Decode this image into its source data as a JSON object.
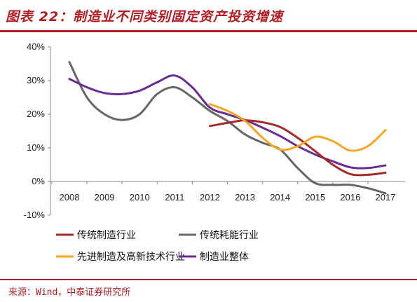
{
  "title": "图表 22：制造业不同类别固定资产投资增速",
  "source": "来源：Wind，中泰证券研究所",
  "chart_data": {
    "type": "line",
    "title": "图表 22：制造业不同类别固定资产投资增速",
    "xlabel": "",
    "ylabel": "",
    "x": [
      "2008",
      "2009",
      "2010",
      "2011",
      "2012",
      "2013",
      "2014",
      "2015",
      "2016",
      "2017"
    ],
    "ylim": [
      -10,
      40
    ],
    "yticks": [
      "-10%",
      "0%",
      "10%",
      "20%",
      "30%",
      "40%"
    ],
    "yticks_values": [
      -10,
      0,
      10,
      20,
      30,
      40
    ],
    "grid": false,
    "legend_position": "bottom",
    "series": [
      {
        "name": "传统制造行业",
        "color": "#a52a2a",
        "points": [
          [
            2012,
            16.5
          ],
          [
            2012.7,
            17.8
          ],
          [
            2013,
            18.2
          ],
          [
            2013.5,
            17.6
          ],
          [
            2014,
            16.2
          ],
          [
            2014.5,
            13.0
          ],
          [
            2015,
            9.0
          ],
          [
            2015.5,
            5.0
          ],
          [
            2016,
            2.2
          ],
          [
            2016.5,
            2.0
          ],
          [
            2017,
            2.6
          ]
        ]
      },
      {
        "name": "传统耗能行业",
        "color": "#666666",
        "points": [
          [
            2008,
            35.5
          ],
          [
            2008.5,
            25.0
          ],
          [
            2009,
            20.0
          ],
          [
            2009.5,
            18.3
          ],
          [
            2010,
            20.0
          ],
          [
            2010.5,
            26.0
          ],
          [
            2011,
            28.0
          ],
          [
            2011.5,
            25.0
          ],
          [
            2012,
            21.0
          ],
          [
            2012.5,
            18.0
          ],
          [
            2013,
            14.0
          ],
          [
            2013.5,
            11.5
          ],
          [
            2014,
            9.5
          ],
          [
            2014.5,
            4.0
          ],
          [
            2015,
            -0.5
          ],
          [
            2015.5,
            -1.0
          ],
          [
            2016,
            -1.0
          ],
          [
            2016.5,
            -2.0
          ],
          [
            2017,
            -3.5
          ]
        ]
      },
      {
        "name": "先进制造及高新技术行业",
        "color": "#f5a623",
        "points": [
          [
            2012,
            23.0
          ],
          [
            2012.5,
            21.0
          ],
          [
            2013,
            18.0
          ],
          [
            2013.5,
            13.0
          ],
          [
            2014,
            9.5
          ],
          [
            2014.5,
            10.5
          ],
          [
            2015,
            13.3
          ],
          [
            2015.5,
            12.0
          ],
          [
            2016,
            9.2
          ],
          [
            2016.5,
            10.5
          ],
          [
            2017,
            15.3
          ]
        ]
      },
      {
        "name": "制造业整体",
        "color": "#6a2c91",
        "points": [
          [
            2008,
            30.5
          ],
          [
            2008.5,
            28.0
          ],
          [
            2009,
            26.3
          ],
          [
            2009.5,
            26.0
          ],
          [
            2010,
            27.0
          ],
          [
            2010.5,
            29.5
          ],
          [
            2011,
            31.5
          ],
          [
            2011.5,
            28.0
          ],
          [
            2012,
            22.0
          ],
          [
            2012.5,
            20.0
          ],
          [
            2013,
            18.3
          ],
          [
            2013.5,
            16.0
          ],
          [
            2014,
            13.5
          ],
          [
            2014.5,
            10.5
          ],
          [
            2015,
            8.0
          ],
          [
            2015.5,
            6.0
          ],
          [
            2016,
            4.2
          ],
          [
            2016.5,
            4.0
          ],
          [
            2017,
            4.8
          ]
        ]
      }
    ]
  }
}
